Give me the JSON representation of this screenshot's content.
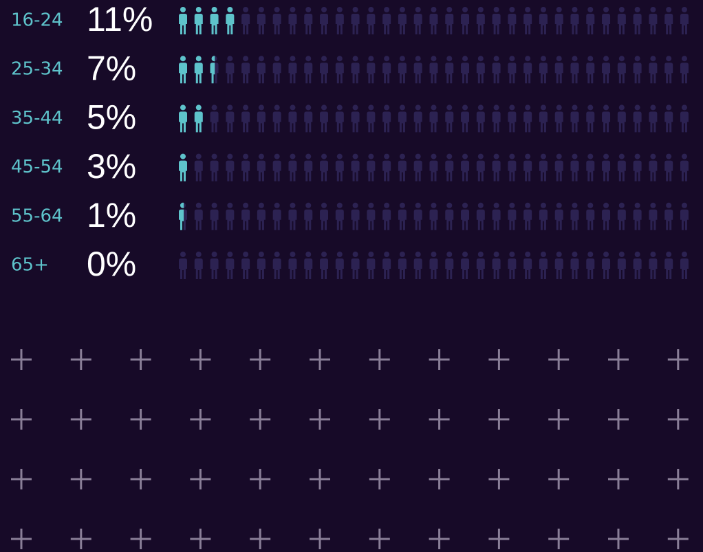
{
  "chart_data": {
    "type": "pictogram",
    "categories": [
      "16-24",
      "25-34",
      "35-44",
      "45-54",
      "55-64",
      "65+"
    ],
    "values": [
      11,
      7,
      5,
      3,
      1,
      0
    ],
    "value_labels": [
      "11%",
      "7%",
      "5%",
      "3%",
      "1%",
      "0%"
    ],
    "xlim": [
      0,
      100
    ],
    "color": "#5ec3cb",
    "empty_color": "#2c2252"
  }
}
